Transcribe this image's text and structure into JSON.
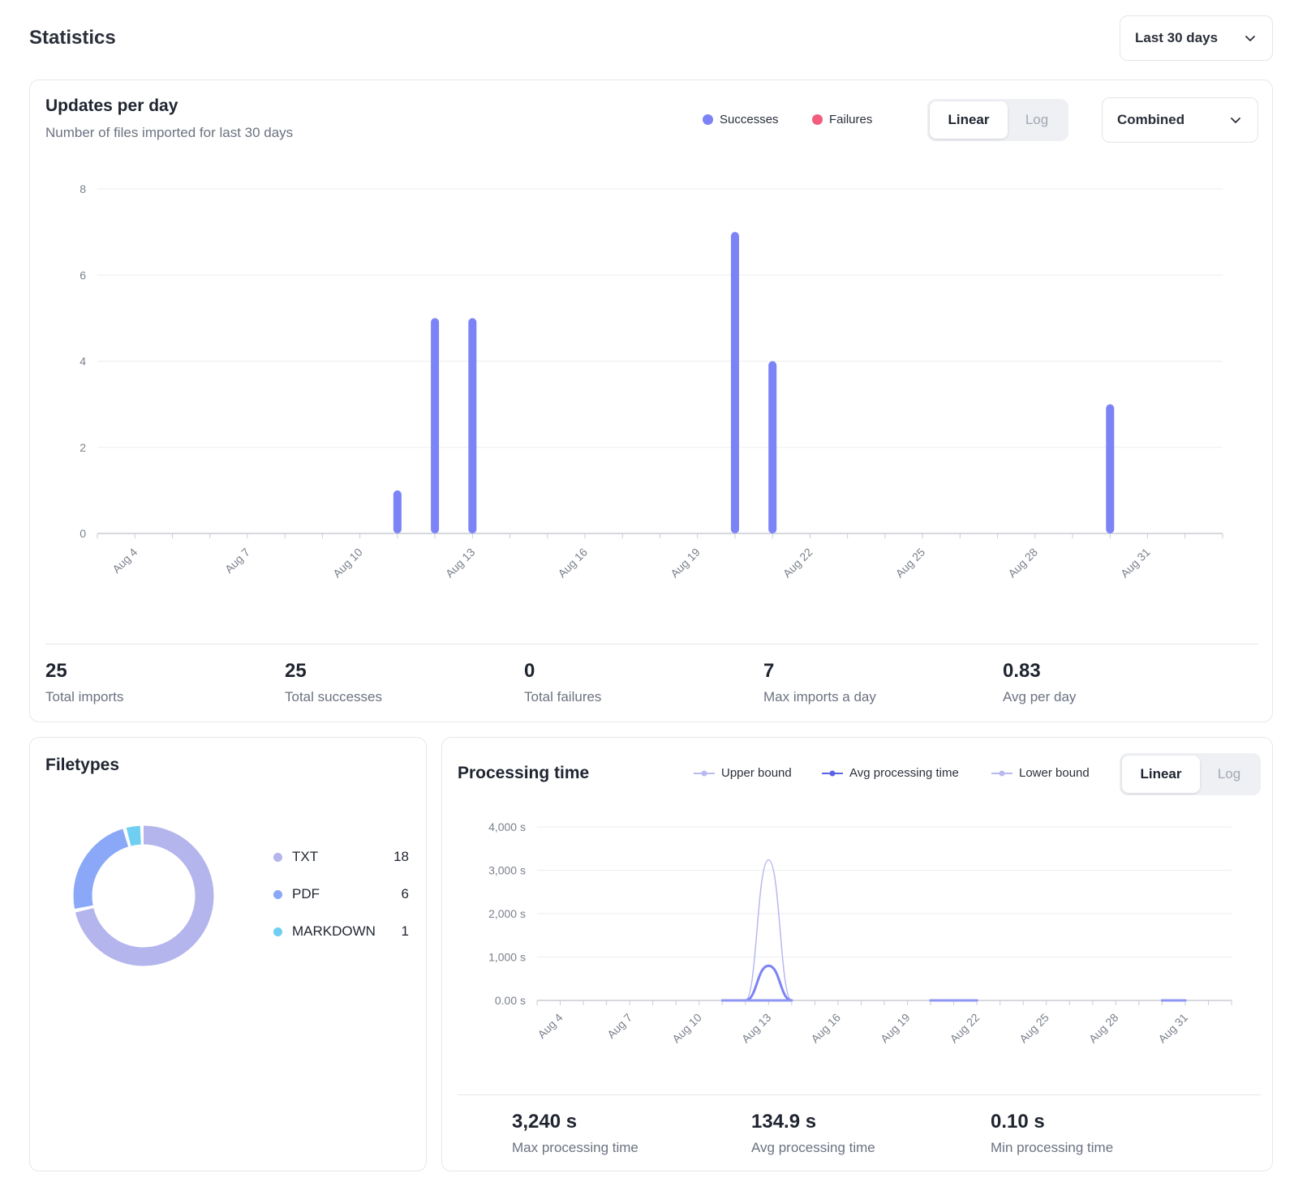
{
  "page": {
    "title": "Statistics",
    "range_label": "Last 30 days"
  },
  "updates": {
    "title": "Updates per day",
    "subtitle": "Number of files imported for last 30 days",
    "legend": [
      {
        "label": "Successes",
        "color": "#7b83f6"
      },
      {
        "label": "Failures",
        "color": "#f25c7d"
      }
    ],
    "scale_options": [
      "Linear",
      "Log"
    ],
    "scale_selected": "Linear",
    "mode_label": "Combined",
    "stats": [
      {
        "value": "25",
        "label": "Total imports"
      },
      {
        "value": "25",
        "label": "Total successes"
      },
      {
        "value": "0",
        "label": "Total failures"
      },
      {
        "value": "7",
        "label": "Max imports a day"
      },
      {
        "value": "0.83",
        "label": "Avg per day"
      }
    ]
  },
  "filetypes": {
    "title": "Filetypes",
    "items": [
      {
        "name": "TXT",
        "count": "18",
        "value": 18,
        "color": "#b3b5ec"
      },
      {
        "name": "PDF",
        "count": "6",
        "value": 6,
        "color": "#8aa8f7"
      },
      {
        "name": "MARKDOWN",
        "count": "1",
        "value": 1,
        "color": "#6fcff2"
      }
    ]
  },
  "processing": {
    "title": "Processing time",
    "legend": [
      {
        "label": "Upper bound",
        "color": "#b7b9f0"
      },
      {
        "label": "Avg processing time",
        "color": "#5b63e8"
      },
      {
        "label": "Lower bound",
        "color": "#b7b9f0"
      }
    ],
    "scale_options": [
      "Linear",
      "Log"
    ],
    "scale_selected": "Linear",
    "stats": [
      {
        "value": "3,240 s",
        "label": "Max processing time"
      },
      {
        "value": "134.9 s",
        "label": "Avg processing time"
      },
      {
        "value": "0.10 s",
        "label": "Min processing time"
      }
    ]
  },
  "chart_data": [
    {
      "type": "bar",
      "title": "Updates per day",
      "categories": [
        "Aug 3",
        "Aug 4",
        "Aug 5",
        "Aug 6",
        "Aug 7",
        "Aug 8",
        "Aug 9",
        "Aug 10",
        "Aug 11",
        "Aug 12",
        "Aug 13",
        "Aug 14",
        "Aug 15",
        "Aug 16",
        "Aug 17",
        "Aug 18",
        "Aug 19",
        "Aug 20",
        "Aug 21",
        "Aug 22",
        "Aug 23",
        "Aug 24",
        "Aug 25",
        "Aug 26",
        "Aug 27",
        "Aug 28",
        "Aug 29",
        "Aug 30",
        "Aug 31",
        "Sep 1",
        "Sep 2"
      ],
      "tick_labels": [
        "Aug 4",
        "Aug 7",
        "Aug 10",
        "Aug 13",
        "Aug 16",
        "Aug 19",
        "Aug 22",
        "Aug 25",
        "Aug 28",
        "Aug 31"
      ],
      "series": [
        {
          "name": "Successes",
          "values": [
            0,
            0,
            0,
            0,
            0,
            0,
            0,
            0,
            1,
            5,
            5,
            0,
            0,
            0,
            0,
            0,
            0,
            7,
            4,
            0,
            0,
            0,
            0,
            0,
            0,
            0,
            0,
            3,
            0,
            0,
            0
          ]
        },
        {
          "name": "Failures",
          "values": [
            0,
            0,
            0,
            0,
            0,
            0,
            0,
            0,
            0,
            0,
            0,
            0,
            0,
            0,
            0,
            0,
            0,
            0,
            0,
            0,
            0,
            0,
            0,
            0,
            0,
            0,
            0,
            0,
            0,
            0,
            0
          ]
        }
      ],
      "y_ticks": [
        "0",
        "2",
        "4",
        "6",
        "8"
      ],
      "ylim": [
        0,
        8
      ],
      "grid": true
    },
    {
      "type": "line",
      "title": "Processing time",
      "x": [
        "Aug 3",
        "Aug 4",
        "Aug 5",
        "Aug 6",
        "Aug 7",
        "Aug 8",
        "Aug 9",
        "Aug 10",
        "Aug 11",
        "Aug 12",
        "Aug 13",
        "Aug 14",
        "Aug 15",
        "Aug 16",
        "Aug 17",
        "Aug 18",
        "Aug 19",
        "Aug 20",
        "Aug 21",
        "Aug 22",
        "Aug 23",
        "Aug 24",
        "Aug 25",
        "Aug 26",
        "Aug 27",
        "Aug 28",
        "Aug 29",
        "Aug 30",
        "Aug 31",
        "Sep 1",
        "Sep 2"
      ],
      "tick_labels": [
        "Aug 4",
        "Aug 7",
        "Aug 10",
        "Aug 13",
        "Aug 16",
        "Aug 19",
        "Aug 22",
        "Aug 25",
        "Aug 28",
        "Aug 31"
      ],
      "series": [
        {
          "name": "Upper bound",
          "values": [
            null,
            null,
            null,
            null,
            null,
            null,
            null,
            null,
            0,
            0,
            3240,
            0,
            null,
            null,
            null,
            null,
            null,
            0,
            0,
            0,
            null,
            null,
            null,
            null,
            null,
            null,
            null,
            0,
            0,
            null,
            null
          ]
        },
        {
          "name": "Avg processing time",
          "values": [
            null,
            null,
            null,
            null,
            null,
            null,
            null,
            null,
            0,
            0,
            800,
            0,
            null,
            null,
            null,
            null,
            null,
            0,
            0,
            0,
            null,
            null,
            null,
            null,
            null,
            null,
            null,
            0,
            0,
            null,
            null
          ]
        },
        {
          "name": "Lower bound",
          "values": [
            null,
            null,
            null,
            null,
            null,
            null,
            null,
            null,
            0,
            0,
            0,
            0,
            null,
            null,
            null,
            null,
            null,
            0,
            0,
            0,
            null,
            null,
            null,
            null,
            null,
            null,
            null,
            0,
            0,
            null,
            null
          ]
        }
      ],
      "y_ticks": [
        "0.00 s",
        "1,000 s",
        "2,000 s",
        "3,000 s",
        "4,000 s"
      ],
      "ylim": [
        0,
        4000
      ],
      "grid": true
    }
  ]
}
